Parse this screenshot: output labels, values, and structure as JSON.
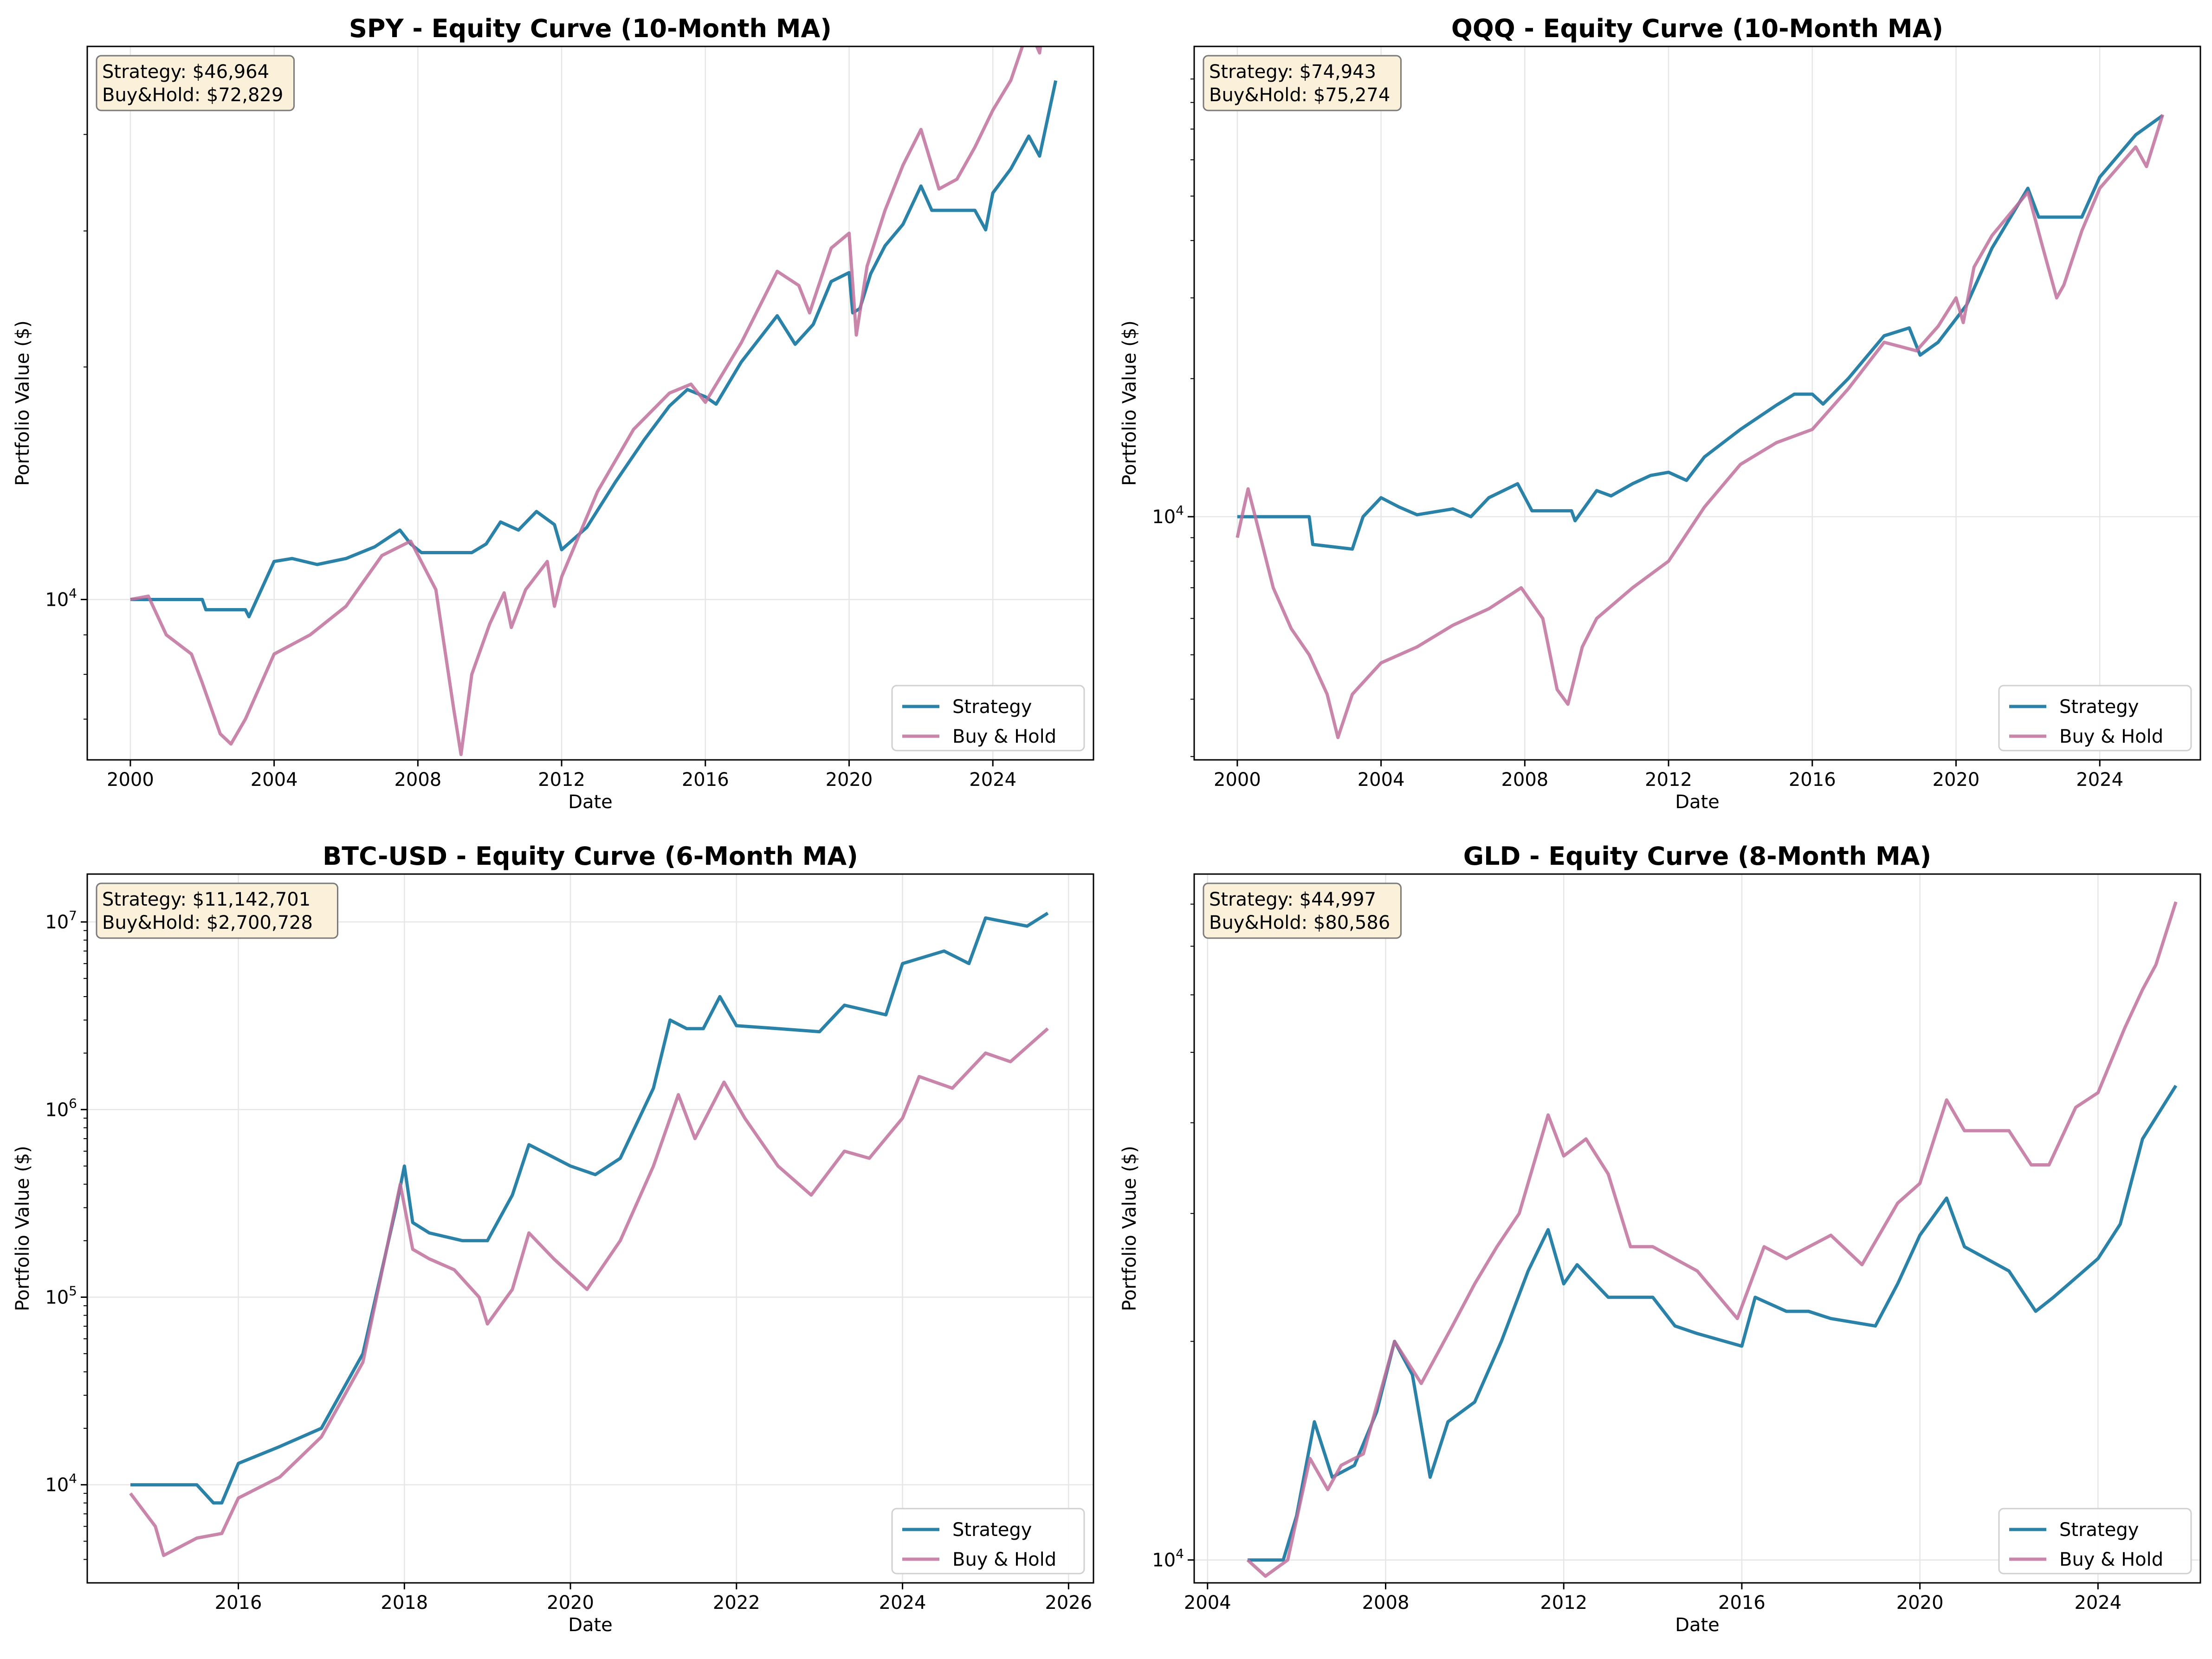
{
  "figure": {
    "colors": {
      "strategy": "#2a82a8",
      "buyhold": "#c0709b",
      "grid": "#e6e6e6",
      "box_fill": "#fbf0d9",
      "box_edge": "#7a7a7a"
    }
  },
  "chart_data": [
    {
      "type": "line",
      "title": "SPY - Equity Curve (10-Month MA)",
      "xlabel": "Date",
      "ylabel": "Portfolio Value ($)",
      "yscale": "log",
      "xlim": [
        1998.8,
        2026.8
      ],
      "ylim": [
        6200,
        52000
      ],
      "x_ticks": [
        2000,
        2004,
        2008,
        2012,
        2016,
        2020,
        2024
      ],
      "x_tick_labels": [
        "2000",
        "2004",
        "2008",
        "2012",
        "2016",
        "2020",
        "2024"
      ],
      "y_ticks": [
        10000
      ],
      "y_tick_labels": [
        "10",
        "4"
      ],
      "minor_y_ticks": [
        7000,
        8000,
        9000,
        20000,
        30000,
        40000
      ],
      "grid": true,
      "legend": {
        "placement": "lower right",
        "entries": [
          "Strategy",
          "Buy & Hold"
        ]
      },
      "annotation": {
        "line1": "Strategy: $46,964",
        "line2": "Buy&Hold: $72,829"
      },
      "series": [
        {
          "name": "Strategy",
          "x": [
            2000.0,
            2002.0,
            2002.1,
            2003.2,
            2003.3,
            2004.0,
            2004.5,
            2005.2,
            2006.0,
            2006.8,
            2007.5,
            2007.8,
            2008.1,
            2009.5,
            2009.9,
            2010.3,
            2010.8,
            2011.3,
            2011.8,
            2012.0,
            2012.7,
            2013.5,
            2014.3,
            2015.0,
            2015.5,
            2016.0,
            2016.3,
            2017.0,
            2018.0,
            2018.5,
            2019.0,
            2019.5,
            2020.0,
            2020.1,
            2020.3,
            2020.6,
            2021.0,
            2021.5,
            2022.0,
            2022.3,
            2023.0,
            2023.5,
            2023.8,
            2024.0,
            2024.5,
            2025.0,
            2025.3,
            2025.75
          ],
          "y": [
            10000,
            10000,
            9700,
            9700,
            9500,
            11200,
            11300,
            11100,
            11300,
            11700,
            12300,
            11800,
            11500,
            11500,
            11800,
            12600,
            12300,
            13000,
            12500,
            11600,
            12400,
            14200,
            16100,
            17800,
            18700,
            18300,
            17900,
            20300,
            23300,
            21400,
            22700,
            25800,
            26500,
            23500,
            23800,
            26400,
            28700,
            30600,
            34300,
            31900,
            31900,
            31900,
            30100,
            33600,
            36100,
            39800,
            37500,
            46964
          ]
        },
        {
          "name": "Buy & Hold",
          "x": [
            2000.0,
            2000.5,
            2001.0,
            2001.7,
            2002.0,
            2002.5,
            2002.8,
            2003.2,
            2004.0,
            2005.0,
            2006.0,
            2007.0,
            2007.8,
            2008.5,
            2009.0,
            2009.2,
            2009.5,
            2010.0,
            2010.4,
            2010.6,
            2011.0,
            2011.6,
            2011.8,
            2012.0,
            2013.0,
            2014.0,
            2015.0,
            2015.6,
            2016.0,
            2017.0,
            2018.0,
            2018.6,
            2018.9,
            2019.5,
            2020.0,
            2020.2,
            2020.5,
            2021.0,
            2021.5,
            2022.0,
            2022.5,
            2023.0,
            2023.5,
            2024.0,
            2024.5,
            2025.0,
            2025.3,
            2025.75
          ],
          "y": [
            10000,
            10100,
            9000,
            8500,
            7800,
            6700,
            6500,
            7000,
            8500,
            9000,
            9800,
            11400,
            11900,
            10300,
            7200,
            6300,
            8000,
            9300,
            10200,
            9200,
            10300,
            11200,
            9800,
            10700,
            13800,
            16600,
            18500,
            19000,
            18000,
            21500,
            26600,
            25500,
            23500,
            28500,
            29800,
            22000,
            27000,
            31900,
            36500,
            40600,
            34000,
            35000,
            38500,
            43000,
            47000,
            55000,
            51000,
            72829
          ]
        }
      ]
    },
    {
      "type": "line",
      "title": "QQQ - Equity Curve (10-Month MA)",
      "xlabel": "Date",
      "ylabel": "Portfolio Value ($)",
      "yscale": "log",
      "xlim": [
        1998.8,
        2026.8
      ],
      "ylim": [
        2950,
        106000
      ],
      "x_ticks": [
        2000,
        2004,
        2008,
        2012,
        2016,
        2020,
        2024
      ],
      "x_tick_labels": [
        "2000",
        "2004",
        "2008",
        "2012",
        "2016",
        "2020",
        "2024"
      ],
      "y_ticks": [
        10000
      ],
      "y_tick_labels": [
        "10",
        "4"
      ],
      "minor_y_ticks": [
        3000,
        4000,
        5000,
        6000,
        7000,
        8000,
        9000,
        20000,
        30000,
        40000,
        50000,
        60000,
        70000,
        80000,
        90000
      ],
      "grid": true,
      "legend": {
        "placement": "lower right",
        "entries": [
          "Strategy",
          "Buy & Hold"
        ]
      },
      "annotation": {
        "line1": "Strategy: $74,943",
        "line2": "Buy&Hold: $75,274"
      },
      "series": [
        {
          "name": "Strategy",
          "x": [
            2000.0,
            2002.0,
            2002.1,
            2003.2,
            2003.5,
            2004.0,
            2004.5,
            2005.0,
            2006.0,
            2006.5,
            2007.0,
            2007.8,
            2008.2,
            2009.3,
            2009.4,
            2010.0,
            2010.4,
            2011.0,
            2011.5,
            2012.0,
            2012.5,
            2013.0,
            2014.0,
            2015.0,
            2015.5,
            2016.0,
            2016.3,
            2017.0,
            2018.0,
            2018.7,
            2019.0,
            2019.5,
            2020.0,
            2020.3,
            2021.0,
            2022.0,
            2022.3,
            2022.7,
            2023.5,
            2024.0,
            2025.0,
            2025.75
          ],
          "y": [
            10000,
            10000,
            8700,
            8500,
            10000,
            11000,
            10500,
            10100,
            10400,
            10000,
            11000,
            11800,
            10300,
            10300,
            9800,
            11400,
            11100,
            11800,
            12300,
            12500,
            12000,
            13500,
            15500,
            17500,
            18500,
            18500,
            17600,
            20000,
            24800,
            25800,
            22500,
            24000,
            27000,
            29000,
            38500,
            52000,
            45000,
            45000,
            45000,
            55000,
            68000,
            74943
          ]
        },
        {
          "name": "Buy & Hold",
          "x": [
            2000.0,
            2000.3,
            2000.5,
            2001.0,
            2001.5,
            2002.0,
            2002.5,
            2002.8,
            2003.2,
            2004.0,
            2005.0,
            2006.0,
            2007.0,
            2007.9,
            2008.5,
            2008.9,
            2009.2,
            2009.6,
            2010.0,
            2011.0,
            2012.0,
            2013.0,
            2014.0,
            2015.0,
            2016.0,
            2017.0,
            2018.0,
            2018.9,
            2019.5,
            2020.0,
            2020.2,
            2020.5,
            2021.0,
            2022.0,
            2022.4,
            2022.8,
            2023.0,
            2023.5,
            2024.0,
            2025.0,
            2025.3,
            2025.75
          ],
          "y": [
            9000,
            11500,
            10000,
            7000,
            5700,
            5000,
            4100,
            3300,
            4100,
            4800,
            5200,
            5800,
            6300,
            7000,
            6000,
            4200,
            3900,
            5200,
            6000,
            7000,
            8000,
            10500,
            13000,
            14500,
            15500,
            19000,
            24000,
            23000,
            26000,
            30000,
            26500,
            35000,
            41000,
            51000,
            39000,
            30000,
            32000,
            42000,
            52000,
            64000,
            58000,
            75274
          ]
        }
      ]
    },
    {
      "type": "line",
      "title": "BTC-USD - Equity Curve (6-Month MA)",
      "xlabel": "Date",
      "ylabel": "Portfolio Value ($)",
      "yscale": "log",
      "xlim": [
        2014.18,
        2026.3
      ],
      "ylim": [
        3000,
        18000000
      ],
      "x_ticks": [
        2016,
        2018,
        2020,
        2022,
        2024,
        2026
      ],
      "x_tick_labels": [
        "2016",
        "2018",
        "2020",
        "2022",
        "2024",
        "2026"
      ],
      "y_ticks": [
        10000,
        100000,
        1000000,
        10000000
      ],
      "y_tick_labels": [
        "10",
        "4",
        "10",
        "5",
        "10",
        "6",
        "10",
        "7"
      ],
      "minor_y_ticks": [
        4000,
        5000,
        6000,
        7000,
        8000,
        9000,
        20000,
        30000,
        40000,
        50000,
        60000,
        70000,
        80000,
        90000,
        200000,
        300000,
        400000,
        500000,
        600000,
        700000,
        800000,
        900000,
        2000000,
        3000000,
        4000000,
        5000000,
        6000000,
        7000000,
        8000000,
        9000000
      ],
      "grid": true,
      "legend": {
        "placement": "lower right",
        "entries": [
          "Strategy",
          "Buy & Hold"
        ]
      },
      "annotation": {
        "line1": "Strategy: $11,142,701",
        "line2": "Buy&Hold: $2,700,728"
      },
      "series": [
        {
          "name": "Strategy",
          "x": [
            2014.7,
            2015.5,
            2015.7,
            2015.8,
            2016.0,
            2016.5,
            2017.0,
            2017.5,
            2017.9,
            2018.0,
            2018.1,
            2018.3,
            2018.7,
            2019.0,
            2019.3,
            2019.5,
            2020.0,
            2020.3,
            2020.6,
            2021.0,
            2021.2,
            2021.4,
            2021.6,
            2021.8,
            2022.0,
            2022.5,
            2023.0,
            2023.3,
            2023.8,
            2024.0,
            2024.5,
            2024.8,
            2025.0,
            2025.5,
            2025.75
          ],
          "y": [
            10000,
            10000,
            8000,
            8000,
            13000,
            16000,
            20000,
            50000,
            300000,
            500000,
            250000,
            220000,
            200000,
            200000,
            350000,
            650000,
            500000,
            450000,
            550000,
            1300000,
            3000000,
            2700000,
            2700000,
            4000000,
            2800000,
            2700000,
            2600000,
            3600000,
            3200000,
            6000000,
            7000000,
            6000000,
            10500000,
            9500000,
            11142701
          ]
        },
        {
          "name": "Buy & Hold",
          "x": [
            2014.7,
            2015.0,
            2015.1,
            2015.5,
            2015.8,
            2016.0,
            2016.5,
            2017.0,
            2017.5,
            2017.95,
            2018.1,
            2018.3,
            2018.6,
            2018.9,
            2019.0,
            2019.3,
            2019.5,
            2019.8,
            2020.2,
            2020.6,
            2021.0,
            2021.3,
            2021.5,
            2021.85,
            2022.1,
            2022.5,
            2022.9,
            2023.3,
            2023.6,
            2024.0,
            2024.2,
            2024.6,
            2025.0,
            2025.3,
            2025.75
          ],
          "y": [
            9000,
            6000,
            4200,
            5200,
            5500,
            8500,
            11000,
            18000,
            45000,
            400000,
            180000,
            160000,
            140000,
            100000,
            72000,
            110000,
            220000,
            160000,
            110000,
            200000,
            500000,
            1200000,
            700000,
            1400000,
            900000,
            500000,
            350000,
            600000,
            550000,
            900000,
            1500000,
            1300000,
            2000000,
            1800000,
            2700728
          ]
        }
      ]
    },
    {
      "type": "line",
      "title": "GLD - Equity Curve (8-Month MA)",
      "xlabel": "Date",
      "ylabel": "Portfolio Value ($)",
      "yscale": "log",
      "xlim": [
        2003.7,
        2026.3
      ],
      "ylim": [
        9300,
        88000
      ],
      "x_ticks": [
        2004,
        2008,
        2012,
        2016,
        2020,
        2024
      ],
      "x_tick_labels": [
        "2004",
        "2008",
        "2012",
        "2016",
        "2020",
        "2024"
      ],
      "y_ticks": [
        10000
      ],
      "y_tick_labels": [
        "10",
        "4"
      ],
      "minor_y_ticks": [
        20000,
        30000,
        40000,
        50000,
        60000,
        70000,
        80000
      ],
      "grid": true,
      "legend": {
        "placement": "lower right",
        "entries": [
          "Strategy",
          "Buy & Hold"
        ]
      },
      "annotation": {
        "line1": "Strategy: $44,997",
        "line2": "Buy&Hold: $80,586"
      },
      "series": [
        {
          "name": "Strategy",
          "x": [
            2004.9,
            2005.7,
            2006.0,
            2006.4,
            2006.8,
            2007.3,
            2007.8,
            2008.2,
            2008.6,
            2009.0,
            2009.4,
            2010.0,
            2010.6,
            2011.2,
            2011.65,
            2012.0,
            2012.3,
            2013.0,
            2014.0,
            2014.5,
            2015.0,
            2016.0,
            2016.3,
            2017.0,
            2017.5,
            2018.0,
            2019.0,
            2019.5,
            2020.0,
            2020.6,
            2021.0,
            2022.0,
            2022.6,
            2023.0,
            2024.0,
            2024.5,
            2025.0,
            2025.75
          ],
          "y": [
            10000,
            10000,
            11500,
            15500,
            13000,
            13500,
            16000,
            20000,
            18000,
            13000,
            15500,
            16500,
            20000,
            25000,
            28500,
            24000,
            25500,
            23000,
            23000,
            21000,
            20500,
            19700,
            23000,
            22000,
            22000,
            21500,
            21000,
            24000,
            28000,
            31500,
            27000,
            25000,
            22000,
            23000,
            26000,
            29000,
            38000,
            44997
          ]
        },
        {
          "name": "Buy & Hold",
          "x": [
            2004.9,
            2005.3,
            2005.8,
            2006.3,
            2006.7,
            2007.0,
            2007.5,
            2008.2,
            2008.8,
            2009.5,
            2010.0,
            2010.5,
            2011.0,
            2011.65,
            2012.0,
            2012.5,
            2013.0,
            2013.5,
            2014.0,
            2015.0,
            2015.9,
            2016.5,
            2017.0,
            2018.0,
            2018.7,
            2019.5,
            2020.0,
            2020.6,
            2021.0,
            2022.0,
            2022.5,
            2022.9,
            2023.5,
            2024.0,
            2024.6,
            2025.0,
            2025.3,
            2025.75
          ],
          "y": [
            10000,
            9500,
            10000,
            13800,
            12500,
            13500,
            14000,
            20000,
            17500,
            21000,
            24000,
            27000,
            30000,
            41000,
            36000,
            38000,
            34000,
            27000,
            27000,
            25000,
            21500,
            27000,
            26000,
            28000,
            25500,
            31000,
            33000,
            43000,
            39000,
            39000,
            35000,
            35000,
            42000,
            44000,
            54000,
            61000,
            66000,
            80586
          ]
        }
      ]
    }
  ]
}
